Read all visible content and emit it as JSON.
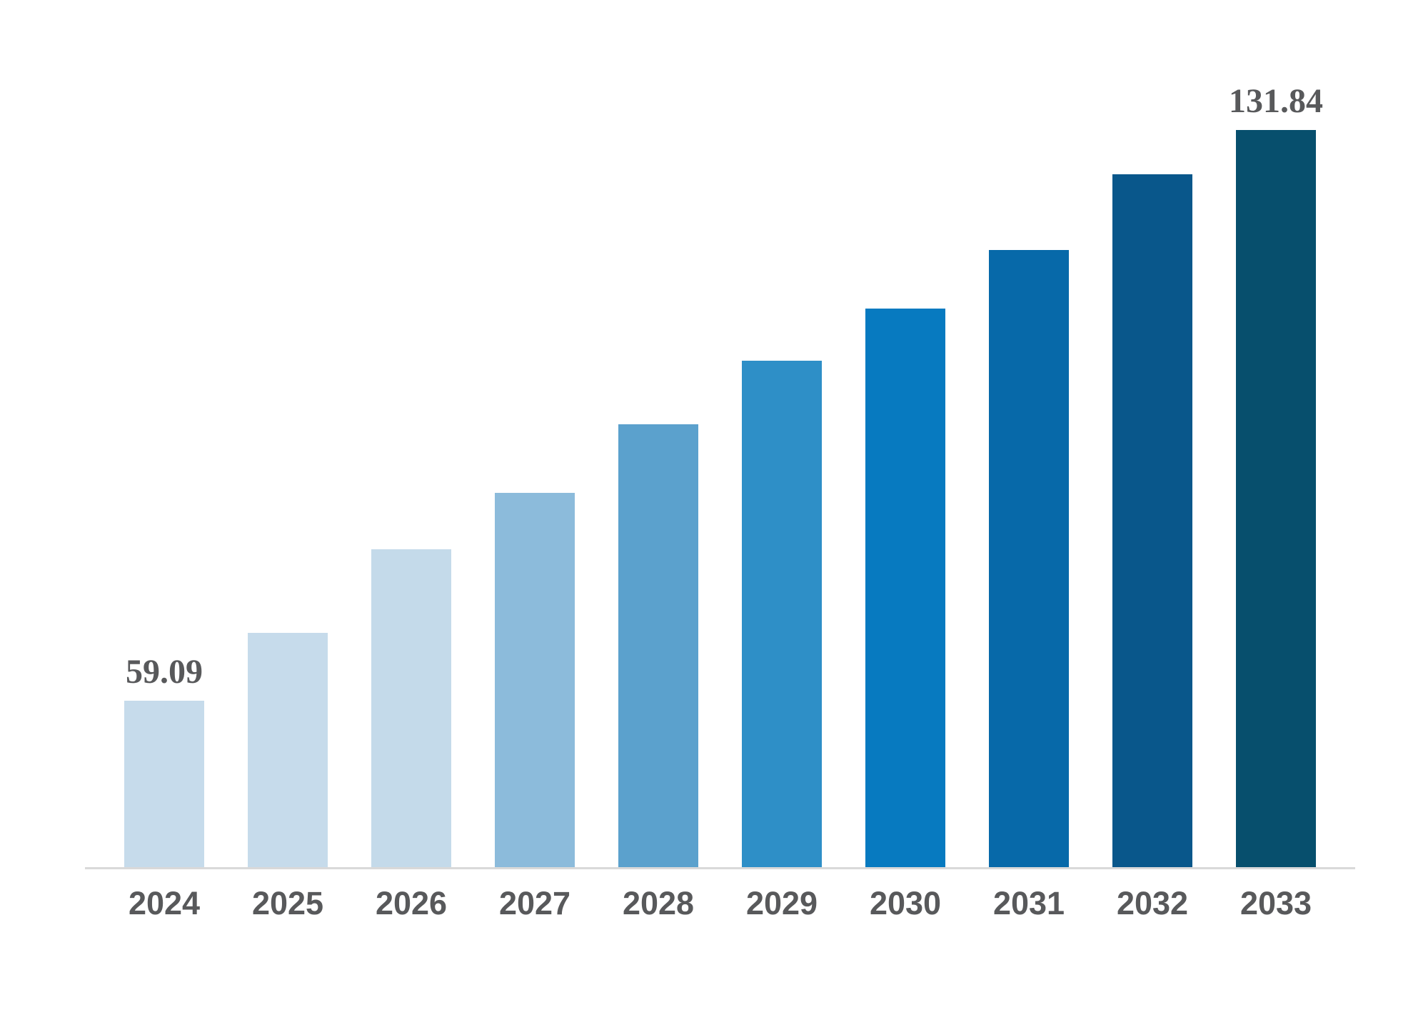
{
  "chart_data": {
    "type": "bar",
    "title": "",
    "xlabel": "",
    "ylabel": "",
    "legend": "none",
    "grid": false,
    "categories": [
      "2024",
      "2025",
      "2026",
      "2027",
      "2028",
      "2029",
      "2030",
      "2031",
      "2032",
      "2033"
    ],
    "values": [
      59.09,
      67.7,
      78.4,
      85.6,
      94.3,
      102.4,
      109.1,
      116.5,
      126.2,
      131.84
    ],
    "data_labels_shown": [
      "59.09",
      "131.84"
    ],
    "axis": {
      "ylim": [
        37.87,
        131.84
      ],
      "y_axis_visible": false,
      "x_baseline_visible": true,
      "baseline_color": "#d9d9d9",
      "tick_label_color": "#58595b",
      "value_label_color": "#58595b"
    },
    "bars": [
      {
        "category": "2024",
        "value": 59.09,
        "label": "59.09",
        "color": "#c6dbeb"
      },
      {
        "category": "2025",
        "value": 67.7,
        "label": "",
        "color": "#c6dbeb"
      },
      {
        "category": "2026",
        "value": 78.4,
        "label": "",
        "color": "#c4daea"
      },
      {
        "category": "2027",
        "value": 85.6,
        "label": "",
        "color": "#8cbbdb"
      },
      {
        "category": "2028",
        "value": 94.3,
        "label": "",
        "color": "#5ba1cd"
      },
      {
        "category": "2029",
        "value": 102.4,
        "label": "",
        "color": "#2e8fc7"
      },
      {
        "category": "2030",
        "value": 109.1,
        "label": "",
        "color": "#077ac0"
      },
      {
        "category": "2031",
        "value": 116.5,
        "label": "",
        "color": "#0769a9"
      },
      {
        "category": "2032",
        "value": 126.2,
        "label": "",
        "color": "#09578b"
      },
      {
        "category": "2033",
        "value": 131.84,
        "label": "131.84",
        "color": "#074f6d"
      }
    ]
  }
}
